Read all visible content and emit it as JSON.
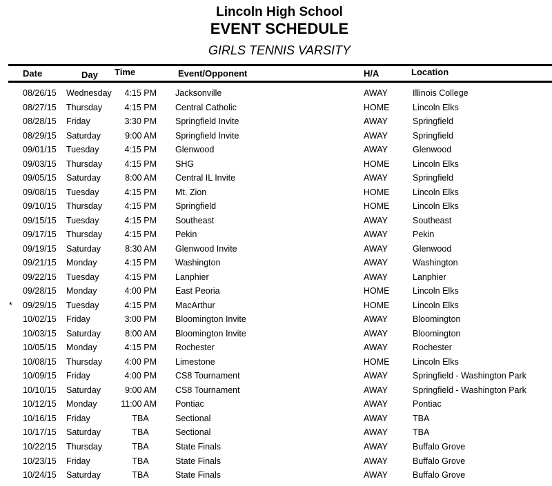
{
  "header": {
    "school": "Lincoln High School",
    "title": "EVENT SCHEDULE",
    "subtitle": "GIRLS TENNIS VARSITY"
  },
  "columns": {
    "date": "Date",
    "day": "Day",
    "time": "Time",
    "event": "Event/Opponent",
    "ha": "H/A",
    "location": "Location"
  },
  "rows": [
    {
      "mark": "",
      "date": "08/26/15",
      "day": "Wednesday",
      "time": "4:15 PM",
      "event": "Jacksonville",
      "ha": "AWAY",
      "location": "Illinois College"
    },
    {
      "mark": "",
      "date": "08/27/15",
      "day": "Thursday",
      "time": "4:15 PM",
      "event": "Central Catholic",
      "ha": "HOME",
      "location": "Lincoln Elks"
    },
    {
      "mark": "",
      "date": "08/28/15",
      "day": "Friday",
      "time": "3:30 PM",
      "event": "Springfield Invite",
      "ha": "AWAY",
      "location": "Springfield"
    },
    {
      "mark": "",
      "date": "08/29/15",
      "day": "Saturday",
      "time": "9:00 AM",
      "event": "Springfield Invite",
      "ha": "AWAY",
      "location": "Springfield"
    },
    {
      "mark": "",
      "date": "09/01/15",
      "day": "Tuesday",
      "time": "4:15 PM",
      "event": "Glenwood",
      "ha": "AWAY",
      "location": "Glenwood"
    },
    {
      "mark": "",
      "date": "09/03/15",
      "day": "Thursday",
      "time": "4:15 PM",
      "event": "SHG",
      "ha": "HOME",
      "location": "Lincoln Elks"
    },
    {
      "mark": "",
      "date": "09/05/15",
      "day": "Saturday",
      "time": "8:00 AM",
      "event": "Central IL Invite",
      "ha": "AWAY",
      "location": "Springfield"
    },
    {
      "mark": "",
      "date": "09/08/15",
      "day": "Tuesday",
      "time": "4:15 PM",
      "event": "Mt. Zion",
      "ha": "HOME",
      "location": "Lincoln Elks"
    },
    {
      "mark": "",
      "date": "09/10/15",
      "day": "Thursday",
      "time": "4:15 PM",
      "event": "Springfield",
      "ha": "HOME",
      "location": "Lincoln Elks"
    },
    {
      "mark": "",
      "date": "09/15/15",
      "day": "Tuesday",
      "time": "4:15 PM",
      "event": "Southeast",
      "ha": "AWAY",
      "location": "Southeast"
    },
    {
      "mark": "",
      "date": "09/17/15",
      "day": "Thursday",
      "time": "4:15 PM",
      "event": "Pekin",
      "ha": "AWAY",
      "location": "Pekin"
    },
    {
      "mark": "",
      "date": "09/19/15",
      "day": "Saturday",
      "time": "8:30 AM",
      "event": "Glenwood Invite",
      "ha": "AWAY",
      "location": "Glenwood"
    },
    {
      "mark": "",
      "date": "09/21/15",
      "day": "Monday",
      "time": "4:15 PM",
      "event": "Washington",
      "ha": "AWAY",
      "location": "Washington"
    },
    {
      "mark": "",
      "date": "09/22/15",
      "day": "Tuesday",
      "time": "4:15 PM",
      "event": "Lanphier",
      "ha": "AWAY",
      "location": "Lanphier"
    },
    {
      "mark": "",
      "date": "09/28/15",
      "day": "Monday",
      "time": "4:00 PM",
      "event": "East Peoria",
      "ha": "HOME",
      "location": "Lincoln Elks"
    },
    {
      "mark": "*",
      "date": "09/29/15",
      "day": "Tuesday",
      "time": "4:15 PM",
      "event": "MacArthur",
      "ha": "HOME",
      "location": "Lincoln Elks"
    },
    {
      "mark": "",
      "date": "10/02/15",
      "day": "Friday",
      "time": "3:00 PM",
      "event": "Bloomington Invite",
      "ha": "AWAY",
      "location": "Bloomington"
    },
    {
      "mark": "",
      "date": "10/03/15",
      "day": "Saturday",
      "time": "8:00 AM",
      "event": "Bloomington Invite",
      "ha": "AWAY",
      "location": "Bloomington"
    },
    {
      "mark": "",
      "date": "10/05/15",
      "day": "Monday",
      "time": "4:15 PM",
      "event": "Rochester",
      "ha": "AWAY",
      "location": "Rochester"
    },
    {
      "mark": "",
      "date": "10/08/15",
      "day": "Thursday",
      "time": "4:00 PM",
      "event": "Limestone",
      "ha": "HOME",
      "location": "Lincoln Elks"
    },
    {
      "mark": "",
      "date": "10/09/15",
      "day": "Friday",
      "time": "4:00 PM",
      "event": "CS8 Tournament",
      "ha": "AWAY",
      "location": "Springfield - Washington Park"
    },
    {
      "mark": "",
      "date": "10/10/15",
      "day": "Saturday",
      "time": "9:00 AM",
      "event": "CS8 Tournament",
      "ha": "AWAY",
      "location": "Springfield - Washington Park"
    },
    {
      "mark": "",
      "date": "10/12/15",
      "day": "Monday",
      "time": "11:00 AM",
      "event": "Pontiac",
      "ha": "AWAY",
      "location": "Pontiac"
    },
    {
      "mark": "",
      "date": "10/16/15",
      "day": "Friday",
      "time": "TBA",
      "event": "Sectional",
      "ha": "AWAY",
      "location": "TBA"
    },
    {
      "mark": "",
      "date": "10/17/15",
      "day": "Saturday",
      "time": "TBA",
      "event": "Sectional",
      "ha": "AWAY",
      "location": "TBA"
    },
    {
      "mark": "",
      "date": "10/22/15",
      "day": "Thursday",
      "time": "TBA",
      "event": "State Finals",
      "ha": "AWAY",
      "location": "Buffalo Grove"
    },
    {
      "mark": "",
      "date": "10/23/15",
      "day": "Friday",
      "time": "TBA",
      "event": "State Finals",
      "ha": "AWAY",
      "location": "Buffalo Grove"
    },
    {
      "mark": "",
      "date": "10/24/15",
      "day": "Saturday",
      "time": "TBA",
      "event": "State Finals",
      "ha": "AWAY",
      "location": "Buffalo Grove"
    }
  ]
}
